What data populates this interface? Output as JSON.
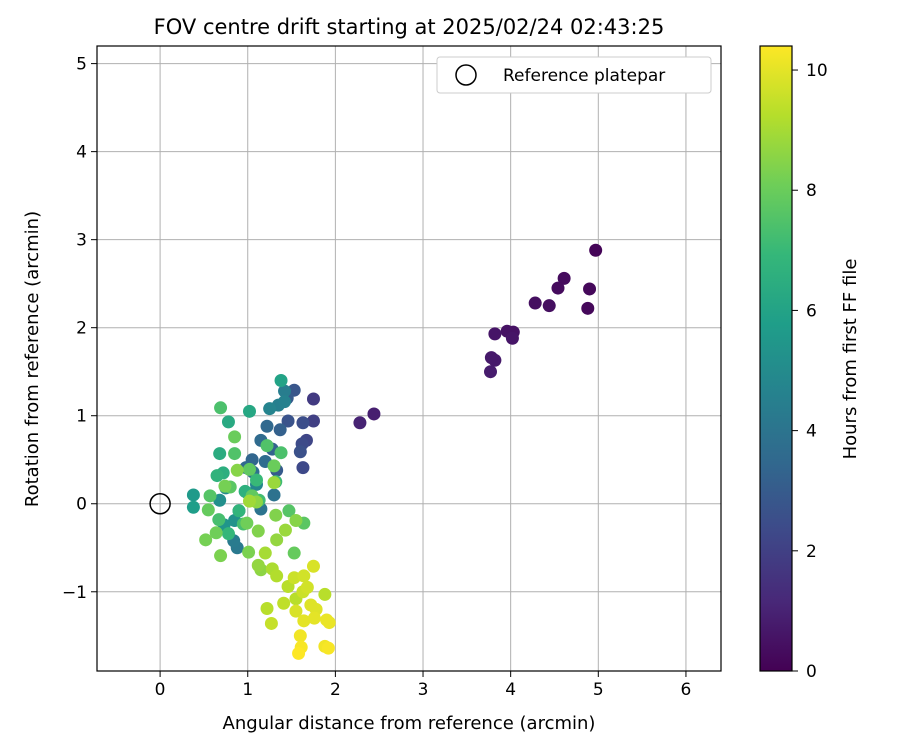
{
  "chart_data": {
    "type": "scatter",
    "title": "FOV centre drift starting at 2025/02/24 02:43:25",
    "xlabel": "Angular distance from reference (arcmin)",
    "ylabel": "Rotation from reference (arcmin)",
    "xlim": [
      -0.72,
      6.4
    ],
    "ylim": [
      -1.9,
      5.2
    ],
    "xticks": [
      0,
      1,
      2,
      3,
      4,
      5,
      6
    ],
    "yticks": [
      -1,
      0,
      1,
      2,
      3,
      4,
      5
    ],
    "xtick_labels": [
      "0",
      "1",
      "2",
      "3",
      "4",
      "5",
      "6"
    ],
    "ytick_labels": [
      "−1",
      "0",
      "1",
      "2",
      "3",
      "4",
      "5"
    ],
    "grid": true,
    "legend": {
      "placement": "top-right",
      "entries": [
        {
          "label": "Reference platepar",
          "marker": "open-circle"
        }
      ]
    },
    "reference_point": {
      "x": 0,
      "y": 0,
      "label": "Reference platepar"
    },
    "colorbar": {
      "label": "Hours from first FF file",
      "range": [
        0,
        10.4
      ],
      "ticks": [
        0,
        2,
        4,
        6,
        8,
        10
      ],
      "tick_labels": [
        "0",
        "2",
        "4",
        "6",
        "8",
        "10"
      ],
      "colormap": "viridis",
      "colors": [
        "#440154",
        "#482878",
        "#3e4989",
        "#31688e",
        "#26828e",
        "#1f9e89",
        "#35b779",
        "#6ece58",
        "#b5de2b",
        "#fde725"
      ]
    },
    "series": [
      {
        "points": [
          [
            4.97,
            2.88,
            0.1
          ],
          [
            4.88,
            2.22,
            0.2
          ],
          [
            4.9,
            2.44,
            0.2
          ],
          [
            4.61,
            2.56,
            0.3
          ],
          [
            4.54,
            2.45,
            0.3
          ],
          [
            4.44,
            2.25,
            0.4
          ],
          [
            4.28,
            2.28,
            0.4
          ],
          [
            4.03,
            1.95,
            0.5
          ],
          [
            3.96,
            1.96,
            0.5
          ],
          [
            4.02,
            1.88,
            0.6
          ],
          [
            3.82,
            1.93,
            0.6
          ],
          [
            3.82,
            1.63,
            0.7
          ],
          [
            3.78,
            1.66,
            0.7
          ],
          [
            3.77,
            1.5,
            0.8
          ],
          [
            2.44,
            1.02,
            0.9
          ],
          [
            2.28,
            0.92,
            1.0
          ],
          [
            1.75,
            1.19,
            1.8
          ],
          [
            1.75,
            0.94,
            2.0
          ],
          [
            1.67,
            0.72,
            2.2
          ],
          [
            1.62,
            0.68,
            2.4
          ],
          [
            1.63,
            0.92,
            2.5
          ],
          [
            1.63,
            0.41,
            2.3
          ],
          [
            1.6,
            0.59,
            2.6
          ],
          [
            1.46,
            0.94,
            2.7
          ],
          [
            1.53,
            1.29,
            2.8
          ],
          [
            1.45,
            1.2,
            3.0
          ],
          [
            1.37,
            0.84,
            3.2
          ],
          [
            1.28,
            0.62,
            3.3
          ],
          [
            1.33,
            0.38,
            3.0
          ],
          [
            1.22,
            0.88,
            3.5
          ],
          [
            1.15,
            0.72,
            3.6
          ],
          [
            1.05,
            0.5,
            3.4
          ],
          [
            1.2,
            0.48,
            3.7
          ],
          [
            0.98,
            0.41,
            3.5
          ],
          [
            1.06,
            0.36,
            3.8
          ],
          [
            1.3,
            0.1,
            3.9
          ],
          [
            1.15,
            -0.06,
            4.0
          ],
          [
            0.9,
            -0.08,
            4.1
          ],
          [
            0.88,
            -0.5,
            4.2
          ],
          [
            0.84,
            -0.42,
            4.3
          ],
          [
            1.42,
            1.28,
            4.4
          ],
          [
            1.35,
            1.12,
            4.5
          ],
          [
            1.42,
            1.16,
            4.6
          ],
          [
            1.25,
            1.08,
            4.7
          ],
          [
            1.1,
            0.22,
            4.8
          ],
          [
            1.0,
            0.12,
            4.9
          ],
          [
            0.75,
            0.18,
            5.0
          ],
          [
            0.68,
            0.04,
            5.2
          ],
          [
            0.85,
            -0.19,
            5.3
          ],
          [
            0.73,
            -0.24,
            5.4
          ],
          [
            0.38,
            0.1,
            5.6
          ],
          [
            0.38,
            -0.04,
            5.8
          ],
          [
            1.38,
            1.4,
            6.0
          ],
          [
            1.02,
            1.05,
            6.2
          ],
          [
            0.78,
            0.93,
            6.3
          ],
          [
            0.68,
            0.57,
            6.4
          ],
          [
            0.72,
            0.35,
            6.5
          ],
          [
            0.97,
            0.14,
            6.6
          ],
          [
            0.65,
            0.32,
            6.7
          ],
          [
            0.9,
            -0.08,
            6.8
          ],
          [
            0.78,
            -0.34,
            6.9
          ],
          [
            1.1,
            0.27,
            7.0
          ],
          [
            1.32,
            0.25,
            7.1
          ],
          [
            1.13,
            0.04,
            7.2
          ],
          [
            0.95,
            -0.23,
            7.3
          ],
          [
            0.67,
            -0.18,
            7.3
          ],
          [
            0.69,
            1.09,
            7.4
          ],
          [
            1.38,
            0.58,
            7.4
          ],
          [
            0.85,
            0.57,
            7.5
          ],
          [
            1.22,
            0.66,
            7.5
          ],
          [
            1.47,
            -0.08,
            7.6
          ],
          [
            0.57,
            0.09,
            7.6
          ],
          [
            1.64,
            -0.22,
            7.7
          ],
          [
            0.8,
            0.19,
            7.7
          ],
          [
            1.02,
            0.39,
            7.8
          ],
          [
            1.05,
            0.09,
            7.8
          ],
          [
            0.55,
            -0.07,
            7.9
          ],
          [
            1.53,
            -0.56,
            7.9
          ],
          [
            0.85,
            0.76,
            8.0
          ],
          [
            1.3,
            0.43,
            8.0
          ],
          [
            0.99,
            -0.22,
            8.1
          ],
          [
            0.64,
            -0.33,
            8.1
          ],
          [
            0.74,
            0.2,
            8.2
          ],
          [
            0.52,
            -0.41,
            8.2
          ],
          [
            0.69,
            -0.59,
            8.3
          ],
          [
            1.01,
            -0.55,
            8.3
          ],
          [
            1.12,
            -0.31,
            8.4
          ],
          [
            1.32,
            -0.13,
            8.4
          ],
          [
            1.55,
            -0.19,
            8.5
          ],
          [
            0.88,
            0.38,
            8.5
          ],
          [
            1.1,
            0.02,
            8.6
          ],
          [
            1.15,
            -0.75,
            8.6
          ],
          [
            1.12,
            -0.7,
            8.7
          ],
          [
            1.33,
            -0.41,
            8.7
          ],
          [
            1.43,
            -0.3,
            8.8
          ],
          [
            1.3,
            0.24,
            8.8
          ],
          [
            1.02,
            0.03,
            8.9
          ],
          [
            1.2,
            -0.56,
            9.0
          ],
          [
            1.28,
            -0.74,
            9.1
          ],
          [
            1.33,
            -0.82,
            9.2
          ],
          [
            1.46,
            -0.94,
            9.3
          ],
          [
            1.55,
            -1.08,
            9.3
          ],
          [
            1.41,
            -1.13,
            9.4
          ],
          [
            1.88,
            -1.03,
            9.3
          ],
          [
            1.22,
            -1.19,
            9.3
          ],
          [
            1.27,
            -1.36,
            9.5
          ],
          [
            1.53,
            -0.84,
            9.6
          ],
          [
            1.63,
            -1.0,
            9.6
          ],
          [
            1.68,
            -0.95,
            9.7
          ],
          [
            1.64,
            -0.82,
            9.7
          ],
          [
            1.75,
            -0.71,
            9.8
          ],
          [
            1.55,
            -1.22,
            9.8
          ],
          [
            1.72,
            -1.15,
            9.9
          ],
          [
            1.78,
            -1.2,
            9.9
          ],
          [
            1.64,
            -1.33,
            10.0
          ],
          [
            1.76,
            -1.3,
            10.0
          ],
          [
            1.9,
            -1.32,
            10.1
          ],
          [
            1.93,
            -1.35,
            10.1
          ],
          [
            1.6,
            -1.5,
            10.2
          ],
          [
            1.88,
            -1.62,
            10.2
          ],
          [
            1.92,
            -1.64,
            10.3
          ],
          [
            1.61,
            -1.63,
            10.3
          ],
          [
            1.58,
            -1.7,
            10.4
          ]
        ]
      }
    ]
  }
}
